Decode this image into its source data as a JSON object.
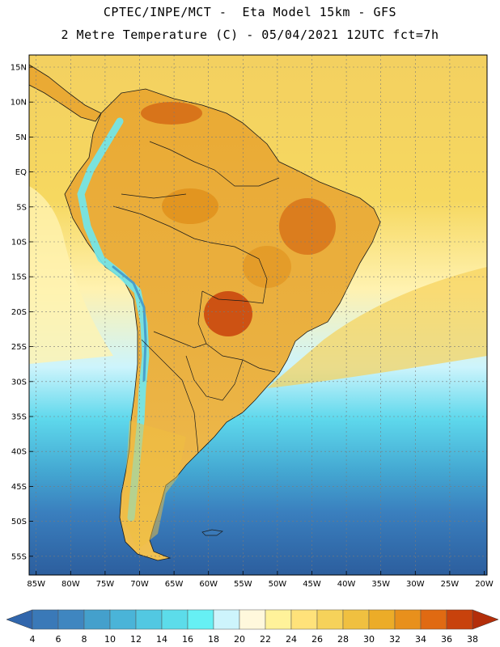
{
  "header": {
    "line1": "CPTEC/INPE/MCT -  Eta Model 15km - GFS",
    "line2": "2 Metre Temperature (C) - 05/04/2021 12UTC fct=7h"
  },
  "map": {
    "lat_ticks": [
      "15N",
      "10N",
      "5N",
      "EQ",
      "5S",
      "10S",
      "15S",
      "20S",
      "25S",
      "30S",
      "35S",
      "40S",
      "45S",
      "50S",
      "55S"
    ],
    "lon_ticks": [
      "85W",
      "80W",
      "75W",
      "70W",
      "65W",
      "60W",
      "55W",
      "50W",
      "45W",
      "40W",
      "35W",
      "30W",
      "25W",
      "20W"
    ]
  },
  "colorbar": {
    "labels": [
      "4",
      "6",
      "8",
      "10",
      "12",
      "14",
      "16",
      "18",
      "20",
      "22",
      "24",
      "26",
      "28",
      "30",
      "32",
      "34",
      "36",
      "38"
    ],
    "colors": [
      "#3a79b8",
      "#3f86c0",
      "#44a0cc",
      "#4ab4d8",
      "#52c8e2",
      "#5cdcea",
      "#66f0f4",
      "#cdf4fc",
      "#fff8dc",
      "#fff29a",
      "#ffe27a",
      "#f6d25a",
      "#f0c040",
      "#ecac28",
      "#e8901c",
      "#e06a12",
      "#c8420c"
    ],
    "low_color": "#3166ac",
    "high_color": "#b32e0a"
  },
  "palette": {
    "ocean_cold": "#2c5e9e",
    "ocean_cool": "#3f8ec6",
    "ocean_mild": "#5ed8ec",
    "ocean_warm": "#f3d060",
    "land_warm": "#eaaa34",
    "land_hot": "#d8741a",
    "andes": "#6ee8f0",
    "border": "#1a1a1a"
  }
}
